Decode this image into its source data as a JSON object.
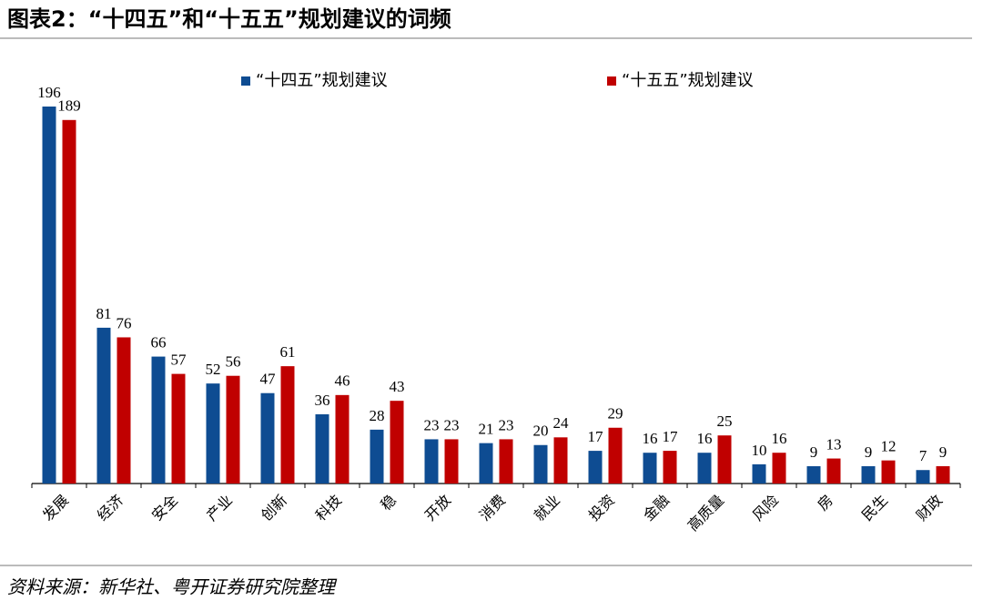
{
  "chart_data": {
    "type": "bar",
    "title": "图表2：“十四五”和“十五五”规划建议的词频",
    "source": "资料来源：新华社、粤开证券研究院整理",
    "categories": [
      "发展",
      "经济",
      "安全",
      "产业",
      "创新",
      "科技",
      "稳",
      "开放",
      "消费",
      "就业",
      "投资",
      "金融",
      "高质量",
      "风险",
      "房",
      "民生",
      "财政"
    ],
    "series": [
      {
        "name": "“十四五”规划建议",
        "color": "#0e4c92",
        "values": [
          196,
          81,
          66,
          52,
          47,
          36,
          28,
          23,
          21,
          20,
          17,
          16,
          16,
          10,
          9,
          9,
          7
        ]
      },
      {
        "name": "“十五五”规划建议",
        "color": "#c00000",
        "values": [
          189,
          76,
          57,
          56,
          61,
          46,
          43,
          23,
          23,
          24,
          29,
          17,
          25,
          16,
          13,
          12,
          9
        ]
      }
    ],
    "legend": "top"
  }
}
